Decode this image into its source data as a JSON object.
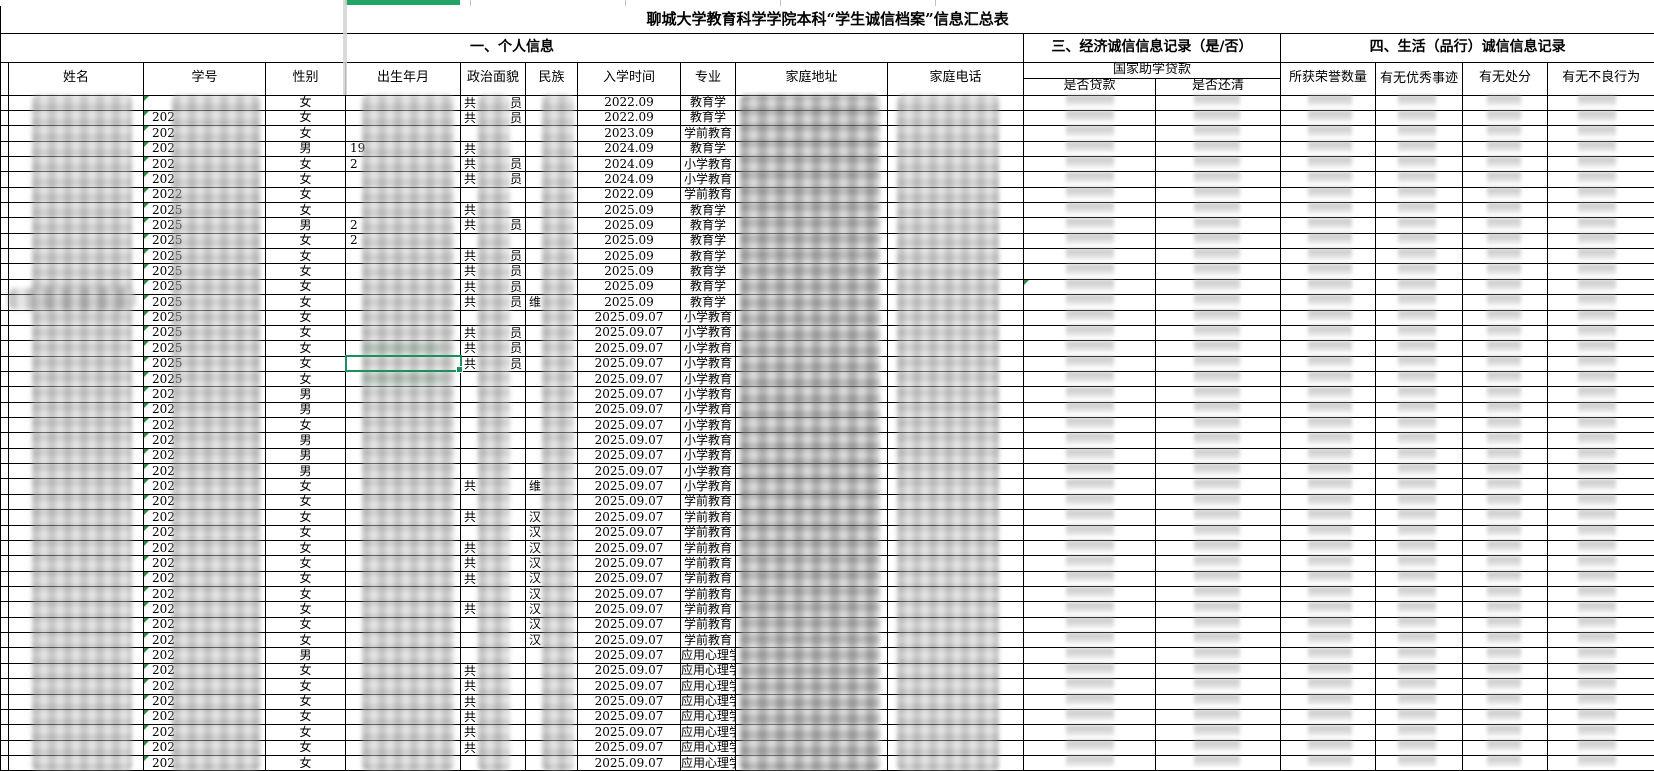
{
  "title": "聊城大学教育科学学院本科“学生诚信档案”信息汇总表",
  "sections": {
    "personal": "一、个人信息",
    "economic": "三、经济诚信信息记录（是/否）",
    "life": "四、生活（品行）诚信信息记录",
    "loan_group": "国家助学贷款"
  },
  "columns": {
    "name": "姓名",
    "student_id": "学号",
    "gender": "性别",
    "birth": "出生年月",
    "political": "政治面貌",
    "ethnicity": "民族",
    "enroll": "入学时间",
    "major": "专业",
    "address": "家庭地址",
    "phone": "家庭电话",
    "loan_taken": "是否贷款",
    "loan_repaid": "是否还清",
    "honors": "所获荣誉数量",
    "deeds": "有无优秀事迹",
    "punishment": "有无处分",
    "misconduct": "有无不良行为"
  },
  "colors": {
    "selection_green": "#1e8e5e",
    "header_underline_green": "#21a366",
    "error_triangle_green": "#2e8b46"
  },
  "selection": {
    "row": 18,
    "column": "出生年月"
  },
  "loan_triangle_row": 13,
  "rows": [
    {
      "g": "女",
      "idp": "",
      "dob": "",
      "pol": "共",
      "tail": "员",
      "eth": "",
      "en": "2022.09",
      "mj": "教育学"
    },
    {
      "g": "女",
      "idp": "202",
      "dob": "",
      "pol": "共",
      "tail": "员",
      "eth": "",
      "en": "2022.09",
      "mj": "教育学"
    },
    {
      "g": "女",
      "idp": "202",
      "dob": "",
      "pol": "",
      "tail": "",
      "eth": "",
      "en": "2023.09",
      "mj": "学前教育"
    },
    {
      "g": "男",
      "idp": "202",
      "dob": "19",
      "pol": "共",
      "tail": "",
      "eth": "",
      "en": "2024.09",
      "mj": "教育学"
    },
    {
      "g": "女",
      "idp": "202",
      "dob": "2",
      "pol": "共",
      "tail": "员",
      "eth": "",
      "en": "2024.09",
      "mj": "小学教育"
    },
    {
      "g": "女",
      "idp": "202",
      "dob": "",
      "pol": "共",
      "tail": "员",
      "eth": "",
      "en": "2024.09",
      "mj": "小学教育"
    },
    {
      "g": "女",
      "idp": "2022",
      "dob": "",
      "pol": "",
      "tail": "",
      "eth": "",
      "en": "2022.09",
      "mj": "学前教育"
    },
    {
      "g": "女",
      "idp": "2025",
      "dob": "",
      "pol": "共",
      "tail": "",
      "eth": "",
      "en": "2025.09",
      "mj": "教育学"
    },
    {
      "g": "男",
      "idp": "2025",
      "dob": "2",
      "pol": "共",
      "tail": "员",
      "eth": "",
      "en": "2025.09",
      "mj": "教育学"
    },
    {
      "g": "女",
      "idp": "2025",
      "dob": "2",
      "pol": "",
      "tail": "",
      "eth": "",
      "en": "2025.09",
      "mj": "教育学"
    },
    {
      "g": "女",
      "idp": "2025",
      "dob": "",
      "pol": "共",
      "tail": "员",
      "eth": "",
      "en": "2025.09",
      "mj": "教育学"
    },
    {
      "g": "女",
      "idp": "2025",
      "dob": "",
      "pol": "共",
      "tail": "员",
      "eth": "",
      "en": "2025.09",
      "mj": "教育学"
    },
    {
      "g": "女",
      "idp": "2025",
      "dob": "",
      "pol": "共",
      "tail": "员",
      "eth": "",
      "en": "2025.09",
      "mj": "教育学"
    },
    {
      "g": "女",
      "idp": "2025",
      "dob": "",
      "pol": "共",
      "tail": "员",
      "eth": "维",
      "en": "2025.09",
      "mj": "教育学"
    },
    {
      "g": "女",
      "idp": "2025",
      "dob": "",
      "pol": "",
      "tail": "",
      "eth": "",
      "en": "2025.09.07",
      "mj": "小学教育"
    },
    {
      "g": "女",
      "idp": "2025",
      "dob": "",
      "pol": "共",
      "tail": "员",
      "eth": "",
      "en": "2025.09.07",
      "mj": "小学教育"
    },
    {
      "g": "女",
      "idp": "2025",
      "dob": "",
      "pol": "共",
      "tail": "员",
      "eth": "",
      "en": "2025.09.07",
      "mj": "小学教育"
    },
    {
      "g": "女",
      "idp": "2025",
      "dob": "",
      "pol": "共",
      "tail": "员",
      "eth": "",
      "en": "2025.09.07",
      "mj": "小学教育"
    },
    {
      "g": "女",
      "idp": "2025",
      "dob": "",
      "pol": "",
      "tail": "",
      "eth": "",
      "en": "2025.09.07",
      "mj": "小学教育"
    },
    {
      "g": "男",
      "idp": "202",
      "dob": "",
      "pol": "",
      "tail": "",
      "eth": "",
      "en": "2025.09.07",
      "mj": "小学教育"
    },
    {
      "g": "男",
      "idp": "202",
      "dob": "",
      "pol": "",
      "tail": "",
      "eth": "",
      "en": "2025.09.07",
      "mj": "小学教育"
    },
    {
      "g": "女",
      "idp": "202",
      "dob": "",
      "pol": "",
      "tail": "",
      "eth": "",
      "en": "2025.09.07",
      "mj": "小学教育"
    },
    {
      "g": "男",
      "idp": "202",
      "dob": "",
      "pol": "",
      "tail": "",
      "eth": "",
      "en": "2025.09.07",
      "mj": "小学教育"
    },
    {
      "g": "男",
      "idp": "202",
      "dob": "",
      "pol": "",
      "tail": "",
      "eth": "",
      "en": "2025.09.07",
      "mj": "小学教育"
    },
    {
      "g": "男",
      "idp": "202",
      "dob": "",
      "pol": "",
      "tail": "",
      "eth": "",
      "en": "2025.09.07",
      "mj": "小学教育"
    },
    {
      "g": "女",
      "idp": "202",
      "dob": "",
      "pol": "共",
      "tail": "",
      "eth": "维",
      "en": "2025.09.07",
      "mj": "小学教育"
    },
    {
      "g": "女",
      "idp": "202",
      "dob": "",
      "pol": "",
      "tail": "",
      "eth": "",
      "en": "2025.09.07",
      "mj": "学前教育"
    },
    {
      "g": "女",
      "idp": "202",
      "dob": "",
      "pol": "共",
      "tail": "",
      "eth": "汉",
      "en": "2025.09.07",
      "mj": "学前教育"
    },
    {
      "g": "女",
      "idp": "202",
      "dob": "",
      "pol": "",
      "tail": "",
      "eth": "汉",
      "en": "2025.09.07",
      "mj": "学前教育"
    },
    {
      "g": "女",
      "idp": "202",
      "dob": "",
      "pol": "共",
      "tail": "",
      "eth": "汉",
      "en": "2025.09.07",
      "mj": "学前教育"
    },
    {
      "g": "女",
      "idp": "202",
      "dob": "",
      "pol": "共",
      "tail": "",
      "eth": "汉",
      "en": "2025.09.07",
      "mj": "学前教育"
    },
    {
      "g": "女",
      "idp": "202",
      "dob": "",
      "pol": "共",
      "tail": "",
      "eth": "汉",
      "en": "2025.09.07",
      "mj": "学前教育"
    },
    {
      "g": "女",
      "idp": "202",
      "dob": "",
      "pol": "",
      "tail": "",
      "eth": "汉",
      "en": "2025.09.07",
      "mj": "学前教育"
    },
    {
      "g": "女",
      "idp": "202",
      "dob": "",
      "pol": "共",
      "tail": "",
      "eth": "汉",
      "en": "2025.09.07",
      "mj": "学前教育"
    },
    {
      "g": "女",
      "idp": "202",
      "dob": "",
      "pol": "",
      "tail": "",
      "eth": "汉",
      "en": "2025.09.07",
      "mj": "学前教育"
    },
    {
      "g": "女",
      "idp": "202",
      "dob": "",
      "pol": "",
      "tail": "",
      "eth": "汉",
      "en": "2025.09.07",
      "mj": "学前教育"
    },
    {
      "g": "男",
      "idp": "202",
      "dob": "",
      "pol": "",
      "tail": "",
      "eth": "",
      "en": "2025.09.07",
      "mj": "应用心理学"
    },
    {
      "g": "女",
      "idp": "202",
      "dob": "",
      "pol": "共",
      "tail": "",
      "eth": "",
      "en": "2025.09.07",
      "mj": "应用心理学"
    },
    {
      "g": "女",
      "idp": "202",
      "dob": "",
      "pol": "共",
      "tail": "",
      "eth": "",
      "en": "2025.09.07",
      "mj": "应用心理学"
    },
    {
      "g": "女",
      "idp": "202",
      "dob": "",
      "pol": "共",
      "tail": "",
      "eth": "",
      "en": "2025.09.07",
      "mj": "应用心理学"
    },
    {
      "g": "女",
      "idp": "202",
      "dob": "",
      "pol": "共",
      "tail": "",
      "eth": "",
      "en": "2025.09.07",
      "mj": "应用心理学"
    },
    {
      "g": "女",
      "idp": "202",
      "dob": "",
      "pol": "共",
      "tail": "",
      "eth": "",
      "en": "2025.09.07",
      "mj": "应用心理学"
    },
    {
      "g": "女",
      "idp": "202",
      "dob": "",
      "pol": "共",
      "tail": "",
      "eth": "",
      "en": "2025.09.07",
      "mj": "应用心理学"
    },
    {
      "g": "女",
      "idp": "202",
      "dob": "",
      "pol": "",
      "tail": "",
      "eth": "",
      "en": "2025.09.07",
      "mj": "应用心理学"
    }
  ]
}
